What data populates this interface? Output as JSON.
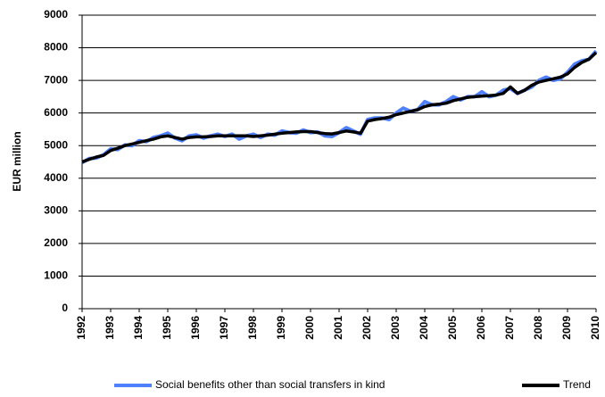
{
  "chart_data": {
    "type": "line",
    "y_label": "EUR million",
    "categories": [
      "1992",
      null,
      null,
      null,
      "1993",
      null,
      null,
      null,
      "1994",
      null,
      null,
      null,
      "1995",
      null,
      null,
      null,
      "1996",
      null,
      null,
      null,
      "1997",
      null,
      null,
      null,
      "1998",
      null,
      null,
      null,
      "1999",
      null,
      null,
      null,
      "2000",
      null,
      null,
      null,
      "2001",
      null,
      null,
      null,
      "2002",
      null,
      null,
      null,
      "2003",
      null,
      null,
      null,
      "2004",
      null,
      null,
      null,
      "2005",
      null,
      null,
      null,
      "2006",
      null,
      null,
      null,
      "2007",
      null,
      null,
      null,
      "2008",
      null,
      null,
      null,
      "2009",
      null,
      null,
      null,
      "2010"
    ],
    "series": [
      {
        "name": "Social benefits other than social transfers in kind",
        "color": "#4f81ff",
        "values": [
          4480,
          4600,
          4620,
          4720,
          4900,
          4880,
          5020,
          5000,
          5150,
          5120,
          5250,
          5300,
          5380,
          5230,
          5150,
          5300,
          5330,
          5230,
          5300,
          5350,
          5280,
          5350,
          5200,
          5300,
          5350,
          5250,
          5350,
          5320,
          5450,
          5400,
          5380,
          5480,
          5400,
          5420,
          5300,
          5280,
          5400,
          5550,
          5450,
          5350,
          5800,
          5850,
          5850,
          5800,
          6000,
          6150,
          6050,
          6100,
          6350,
          6250,
          6250,
          6350,
          6500,
          6400,
          6500,
          6500,
          6650,
          6500,
          6550,
          6700,
          6750,
          6600,
          6700,
          6800,
          7000,
          7100,
          7000,
          7050,
          7250,
          7500,
          7600,
          7650,
          7900
        ]
      },
      {
        "name": "Trend",
        "color": "#000000",
        "values": [
          4500,
          4580,
          4650,
          4700,
          4850,
          4920,
          5000,
          5050,
          5100,
          5150,
          5200,
          5270,
          5300,
          5250,
          5200,
          5250,
          5270,
          5270,
          5280,
          5300,
          5300,
          5300,
          5300,
          5300,
          5280,
          5300,
          5320,
          5350,
          5380,
          5400,
          5420,
          5430,
          5430,
          5400,
          5370,
          5360,
          5400,
          5450,
          5420,
          5380,
          5750,
          5800,
          5830,
          5870,
          5950,
          6000,
          6050,
          6100,
          6200,
          6250,
          6270,
          6300,
          6380,
          6430,
          6480,
          6500,
          6520,
          6530,
          6550,
          6600,
          6800,
          6600,
          6700,
          6850,
          6950,
          7000,
          7050,
          7100,
          7200,
          7400,
          7550,
          7650,
          7850
        ]
      }
    ],
    "ylim": [
      0,
      9000
    ],
    "yticks": [
      0,
      1000,
      2000,
      3000,
      4000,
      5000,
      6000,
      7000,
      8000,
      9000
    ],
    "grid": true,
    "legend": "bottom"
  }
}
